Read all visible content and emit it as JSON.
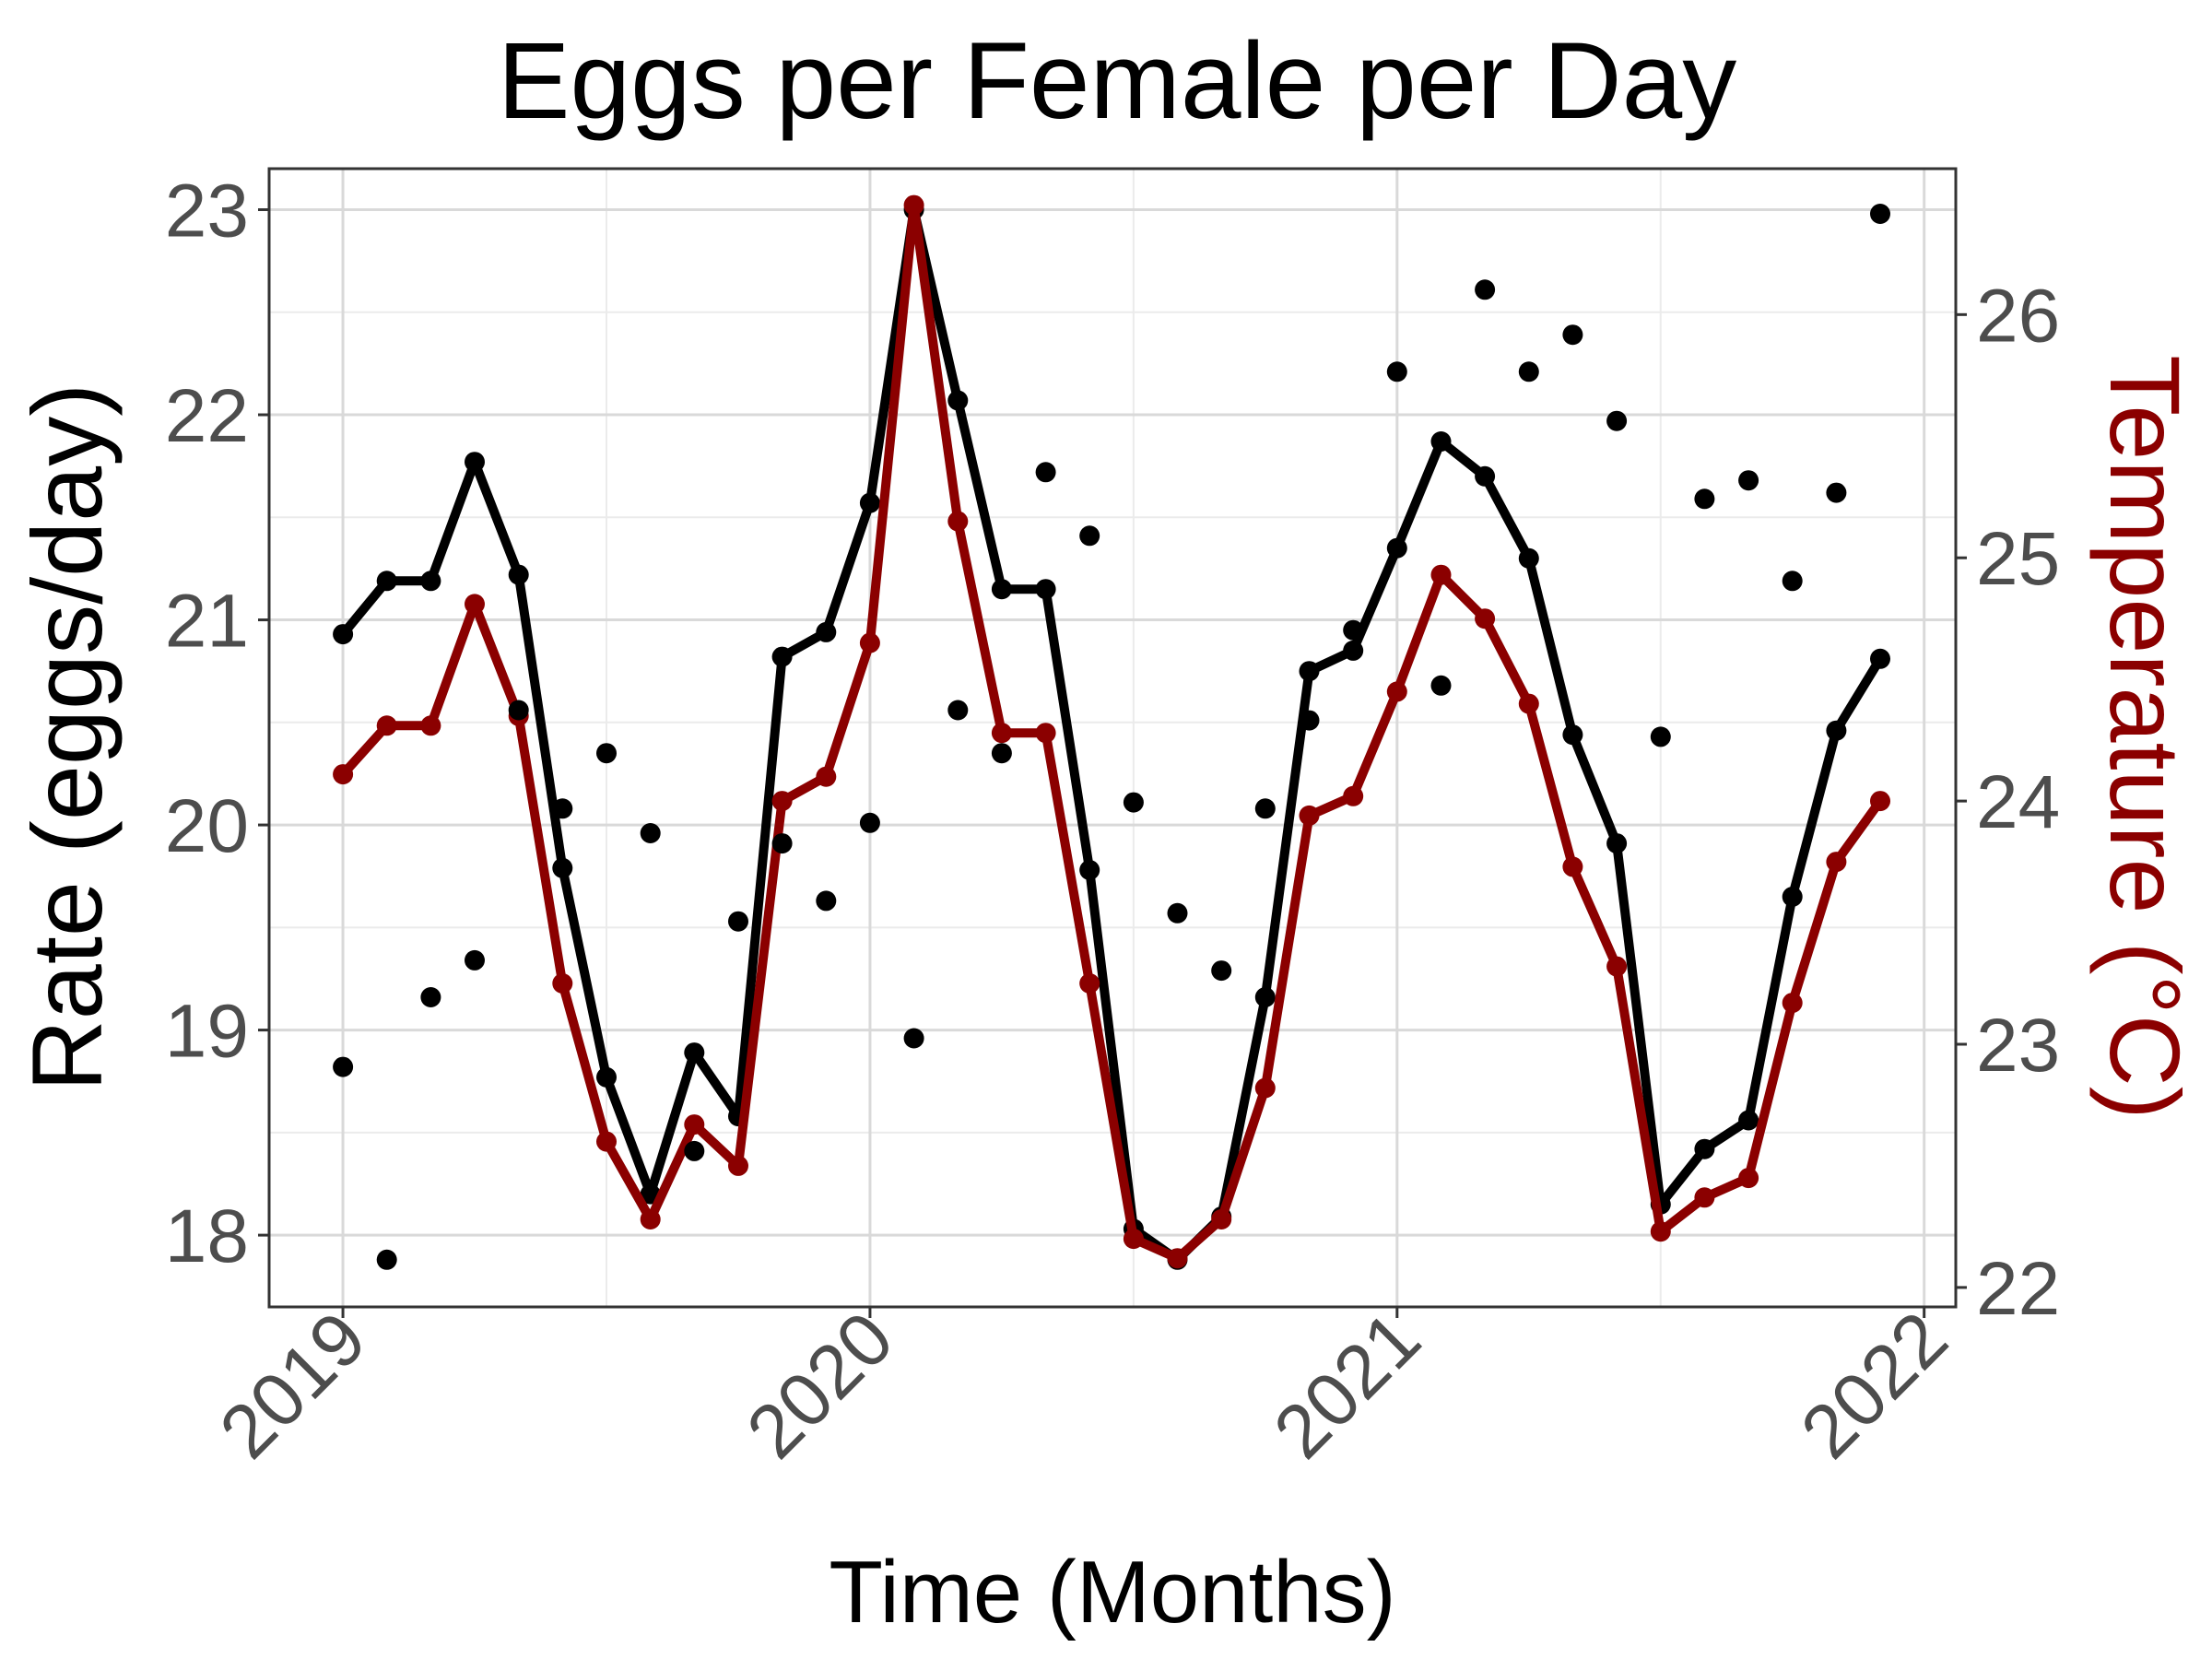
{
  "chart_data": {
    "type": "line",
    "title": "Eggs per Female per Day",
    "xlabel": "Time (Months)",
    "ylabel": "Rate (eggs/day)",
    "y2label": "Temperature (°C)",
    "x_ticks": [
      "2019",
      "2020",
      "2021",
      "2022"
    ],
    "y_ticks": [
      "18",
      "19",
      "20",
      "21",
      "22",
      "23"
    ],
    "y2_ticks": [
      "22",
      "23",
      "24",
      "25",
      "26"
    ],
    "ylim": [
      17.65,
      23.2
    ],
    "y2lim": [
      21.92,
      26.6
    ],
    "xlim": [
      2018.86,
      2022.06
    ],
    "grid": true,
    "legend": "none",
    "colors": {
      "rate": "#000000",
      "temperature": "#8b0000",
      "axis_text": "#4d4d4d",
      "grid_major": "#d9d9d9",
      "grid_minor": "#ebebeb"
    },
    "x": [
      "2019-01",
      "2019-02",
      "2019-03",
      "2019-04",
      "2019-05",
      "2019-06",
      "2019-07",
      "2019-08",
      "2019-09",
      "2019-10",
      "2019-11",
      "2019-12",
      "2020-01",
      "2020-02",
      "2020-03",
      "2020-04",
      "2020-05",
      "2020-06",
      "2020-07",
      "2020-08",
      "2020-09",
      "2020-10",
      "2020-11",
      "2020-12",
      "2021-01",
      "2021-02",
      "2021-03",
      "2021-04",
      "2021-05",
      "2021-06",
      "2021-07",
      "2021-08",
      "2021-09",
      "2021-10",
      "2021-11",
      "2021-12"
    ],
    "series": [
      {
        "axis": "left",
        "style": "line+points",
        "color": "#000000",
        "values": [
          20.93,
          21.19,
          21.19,
          21.77,
          21.22,
          19.79,
          18.77,
          18.2,
          18.89,
          18.58,
          20.82,
          20.94,
          21.57,
          23.0,
          22.07,
          21.15,
          21.15,
          19.78,
          18.03,
          17.88,
          18.09,
          19.16,
          20.75,
          20.85,
          21.35,
          21.87,
          21.7,
          21.3,
          20.44,
          19.91,
          18.15,
          18.42,
          18.56,
          19.65,
          20.46,
          20.81
        ]
      },
      {
        "axis": "right",
        "style": "line+points",
        "color": "#8b0000",
        "values": [
          24.11,
          24.31,
          24.31,
          24.81,
          24.35,
          23.25,
          22.6,
          22.28,
          22.67,
          22.5,
          24.0,
          24.1,
          24.65,
          26.45,
          25.15,
          24.28,
          24.28,
          23.25,
          22.2,
          22.12,
          22.28,
          22.82,
          23.94,
          24.02,
          24.45,
          24.93,
          24.75,
          24.4,
          23.73,
          23.32,
          22.23,
          22.37,
          22.45,
          23.17,
          23.75,
          24.0
        ]
      },
      {
        "axis": "left",
        "style": "points",
        "color": "#000000",
        "values": [
          18.82,
          17.88,
          19.16,
          19.34,
          20.56,
          20.08,
          20.35,
          19.96,
          18.41,
          19.53,
          19.91,
          19.63,
          20.01,
          18.96,
          20.56,
          20.35,
          21.72,
          21.41,
          20.11,
          19.57,
          19.29,
          20.08,
          20.51,
          20.95,
          22.21,
          20.68,
          22.61,
          22.21,
          22.39,
          21.97,
          20.43,
          21.59,
          21.68,
          21.19,
          21.62,
          22.98
        ]
      }
    ]
  }
}
